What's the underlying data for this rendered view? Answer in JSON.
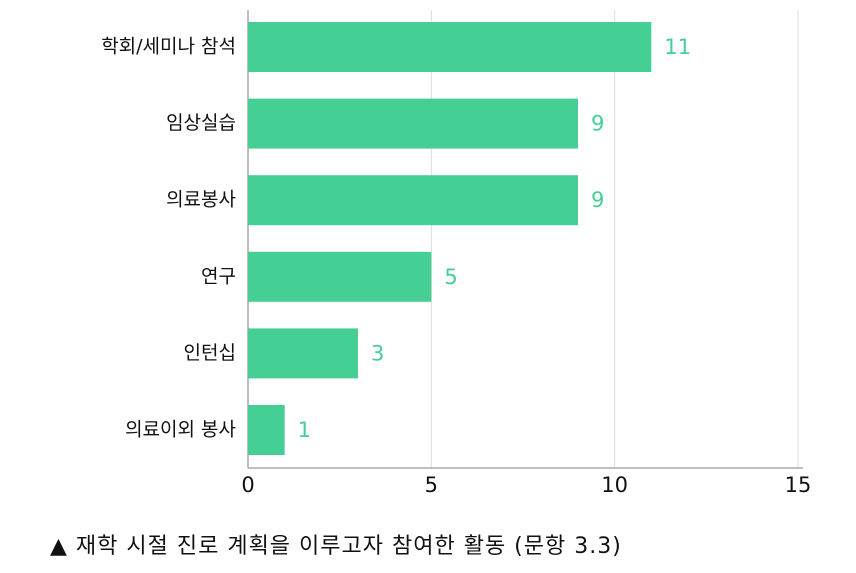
{
  "chart_data": {
    "type": "bar",
    "orientation": "horizontal",
    "categories": [
      "학회/세미나 참석",
      "임상실습",
      "의료봉사",
      "연구",
      "인턴십",
      "의료이외 봉사"
    ],
    "values": [
      11,
      9,
      9,
      5,
      3,
      1
    ],
    "xlim": [
      0,
      15
    ],
    "xticks": [
      0,
      5,
      10,
      15
    ],
    "grid": true,
    "bar_color": "#45cf95",
    "label_color": "#45cf95",
    "caption": "▲ 재학 시절 진로 계획을 이루고자 참여한 활동 (문항 3.3)"
  }
}
